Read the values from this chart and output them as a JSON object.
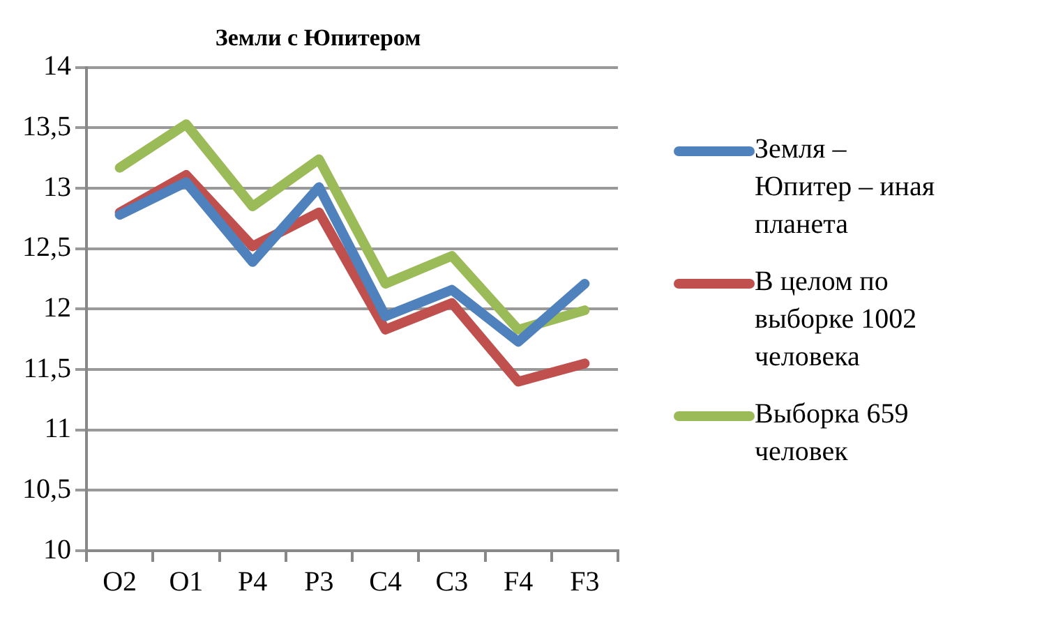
{
  "chart_data": {
    "type": "line",
    "title": "Земли с Юпитером",
    "categories": [
      "O2",
      "O1",
      "P4",
      "P3",
      "C4",
      "C3",
      "F4",
      "F3"
    ],
    "series": [
      {
        "name": "Земля – Юпитер – иная планета",
        "color": "#4f81bd",
        "values": [
          12.78,
          13.05,
          12.39,
          13.01,
          11.94,
          12.16,
          11.73,
          12.21
        ]
      },
      {
        "name": "В целом по выборке 1002 человека",
        "color": "#c0504d",
        "values": [
          12.8,
          13.11,
          12.52,
          12.8,
          11.83,
          12.05,
          11.4,
          11.55
        ]
      },
      {
        "name": "Выборка 659 человек",
        "color": "#9bbb59",
        "values": [
          13.17,
          13.53,
          12.85,
          13.24,
          12.21,
          12.44,
          11.83,
          11.99
        ]
      }
    ],
    "ylim": [
      10,
      14
    ],
    "yticks": [
      10,
      {
        "value": 10.5,
        "label": "10,5"
      },
      11,
      {
        "value": 11.5,
        "label": "11,5"
      },
      12,
      {
        "value": 12.5,
        "label": "12,5"
      },
      13,
      {
        "value": 13.5,
        "label": "13,5"
      },
      14
    ],
    "grid": "y",
    "legend": "right",
    "marker": "none",
    "line_style": "solid"
  }
}
